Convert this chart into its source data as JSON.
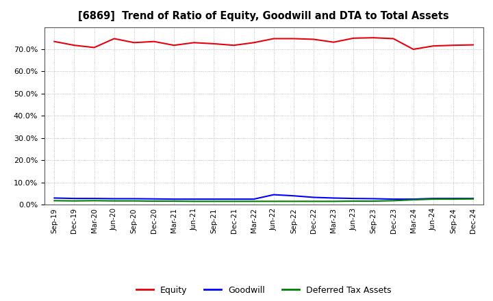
{
  "title": "[6869]  Trend of Ratio of Equity, Goodwill and DTA to Total Assets",
  "x_labels": [
    "Sep-19",
    "Dec-19",
    "Mar-20",
    "Jun-20",
    "Sep-20",
    "Dec-20",
    "Mar-21",
    "Jun-21",
    "Sep-21",
    "Dec-21",
    "Mar-22",
    "Jun-22",
    "Sep-22",
    "Dec-22",
    "Mar-23",
    "Jun-23",
    "Sep-23",
    "Dec-23",
    "Mar-24",
    "Jun-24",
    "Sep-24",
    "Dec-24"
  ],
  "equity": [
    0.735,
    0.718,
    0.708,
    0.748,
    0.73,
    0.735,
    0.718,
    0.73,
    0.725,
    0.718,
    0.73,
    0.748,
    0.748,
    0.745,
    0.732,
    0.75,
    0.752,
    0.748,
    0.7,
    0.715,
    0.718,
    0.72
  ],
  "goodwill": [
    0.03,
    0.028,
    0.028,
    0.027,
    0.027,
    0.026,
    0.025,
    0.025,
    0.025,
    0.025,
    0.025,
    0.045,
    0.04,
    0.033,
    0.03,
    0.028,
    0.027,
    0.025,
    0.025,
    0.028,
    0.028,
    0.028
  ],
  "dta": [
    0.018,
    0.017,
    0.018,
    0.017,
    0.017,
    0.016,
    0.016,
    0.015,
    0.015,
    0.015,
    0.015,
    0.015,
    0.015,
    0.015,
    0.015,
    0.016,
    0.016,
    0.018,
    0.022,
    0.025,
    0.025,
    0.026
  ],
  "equity_color": "#e8000d",
  "goodwill_color": "#0000ff",
  "dta_color": "#008000",
  "background_color": "#ffffff",
  "grid_color": "#b0b0b0",
  "ylim": [
    0.0,
    0.8
  ],
  "yticks": [
    0.0,
    0.1,
    0.2,
    0.3,
    0.4,
    0.5,
    0.6,
    0.7
  ],
  "legend_labels": [
    "Equity",
    "Goodwill",
    "Deferred Tax Assets"
  ]
}
